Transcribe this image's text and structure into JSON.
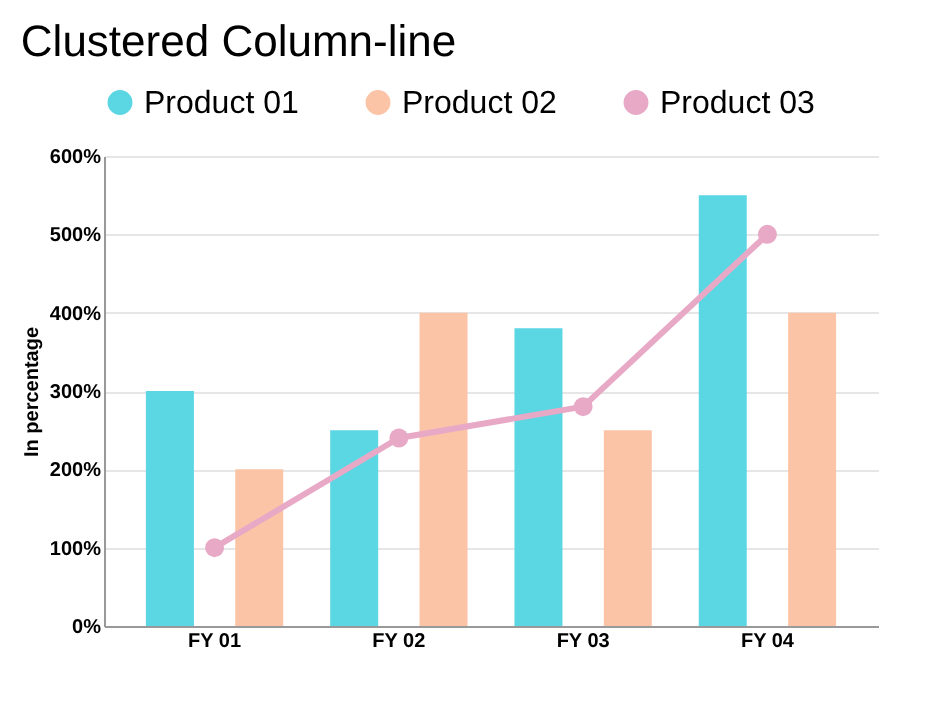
{
  "chart_data": {
    "type": "bar",
    "title": "Clustered Column-line",
    "ylabel": "In percentage",
    "categories": [
      "FY 01",
      "FY 02",
      "FY 03",
      "FY 04"
    ],
    "series": [
      {
        "name": "Product 01",
        "color": "#5bd6e3",
        "values": [
          300,
          250,
          380,
          550
        ]
      },
      {
        "name": "Product 02",
        "color": "#fcc4a6",
        "values": [
          200,
          400,
          250,
          400
        ]
      },
      {
        "name": "Product 03",
        "type": "line",
        "color": "#e8a9c6",
        "values": [
          100,
          240,
          280,
          500
        ],
        "marker": "circle",
        "line_style": "solid"
      }
    ],
    "ylim": [
      0,
      600
    ],
    "yticks": [
      {
        "value": 0,
        "label": "0%"
      },
      {
        "value": 100,
        "label": "100%"
      },
      {
        "value": 200,
        "label": "200%"
      },
      {
        "value": 300,
        "label": "300%"
      },
      {
        "value": 400,
        "label": "400%"
      },
      {
        "value": 500,
        "label": "500%"
      },
      {
        "value": 600,
        "label": "600%"
      }
    ],
    "grid": "y",
    "legend": "top"
  }
}
